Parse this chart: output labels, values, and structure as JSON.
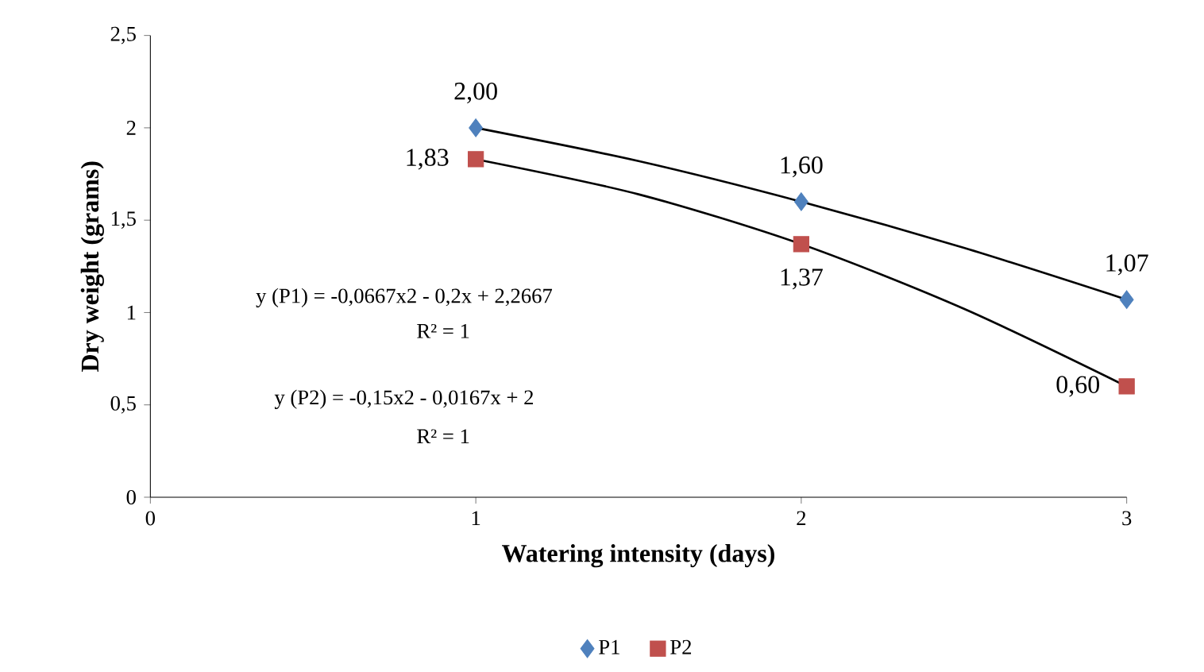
{
  "chart_data": {
    "type": "scatter",
    "xlabel": "Watering intensity (days)",
    "ylabel": "Dry weight (grams)",
    "xlim": [
      0,
      3
    ],
    "xticks": [
      0,
      1,
      2,
      3
    ],
    "ylim": [
      0,
      2.5
    ],
    "yticks": [
      0,
      {
        "value": 0.5,
        "label": "0,5"
      },
      1,
      {
        "value": 1.5,
        "label": "1,5"
      },
      2,
      {
        "value": 2.5,
        "label": "2,5"
      }
    ],
    "x": [
      1,
      2,
      3
    ],
    "legend": "bottom",
    "grid": false,
    "series": [
      {
        "name": "P1",
        "color": "#4f81bd",
        "marker": "diamond",
        "values": [
          2.0,
          1.6,
          1.07
        ],
        "value_labels": [
          "2,00",
          "1,60",
          "1,07"
        ]
      },
      {
        "name": "P2",
        "color": "#c0504d",
        "marker": "square",
        "values": [
          1.83,
          1.37,
          0.6
        ],
        "value_labels": [
          "1,83",
          "1,37",
          "0,60"
        ]
      },
      {
        "type": "line",
        "color": "#000000",
        "marker": "none",
        "x": [
          1,
          1.5,
          2,
          2.5,
          3
        ],
        "values": [
          2.0,
          1.82,
          1.6,
          1.35,
          1.07
        ]
      },
      {
        "type": "line",
        "color": "#000000",
        "marker": "none",
        "x": [
          1,
          1.5,
          2,
          2.5,
          3
        ],
        "values": [
          1.83,
          1.64,
          1.37,
          1.02,
          0.6
        ]
      }
    ],
    "annotations": [
      "y (P1) = -0,0667x2 - 0,2x + 2,2667",
      "R² = 1",
      "y (P2) = -0,15x2 - 0,0167x + 2",
      "R² = 1"
    ]
  }
}
